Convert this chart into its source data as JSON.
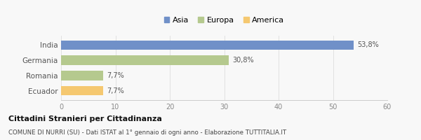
{
  "categories": [
    "India",
    "Germania",
    "Romania",
    "Ecuador"
  ],
  "values": [
    53.8,
    30.8,
    7.7,
    7.7
  ],
  "labels": [
    "53,8%",
    "30,8%",
    "7,7%",
    "7,7%"
  ],
  "colors": [
    "#7090c8",
    "#b5c98e",
    "#b5c98e",
    "#f5c870"
  ],
  "legend": [
    {
      "label": "Asia",
      "color": "#7090c8"
    },
    {
      "label": "Europa",
      "color": "#b5c98e"
    },
    {
      "label": "America",
      "color": "#f5c870"
    }
  ],
  "xlim": [
    0,
    60
  ],
  "xticks": [
    0,
    10,
    20,
    30,
    40,
    50,
    60
  ],
  "title_bold": "Cittadini Stranieri per Cittadinanza",
  "subtitle": "COMUNE DI NURRI (SU) - Dati ISTAT al 1° gennaio di ogni anno - Elaborazione TUTTITALIA.IT",
  "background_color": "#f8f8f8",
  "bar_height": 0.6
}
